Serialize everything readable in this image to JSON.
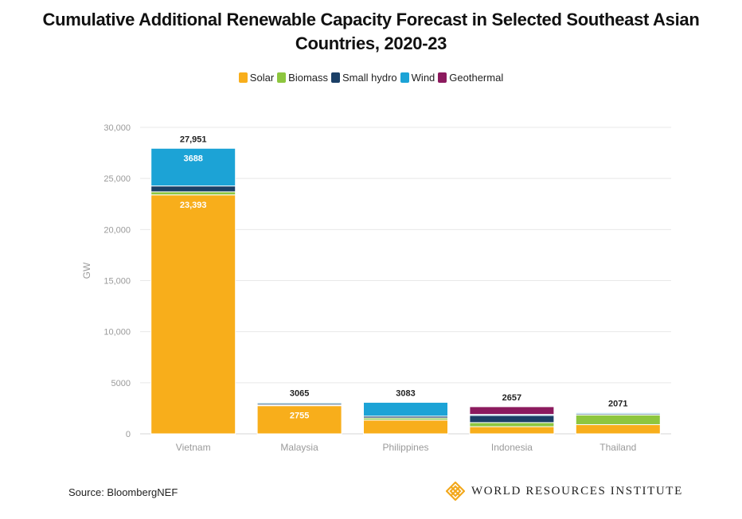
{
  "title_line1": "Cumulative Additional Renewable Capacity Forecast in Selected Southeast Asian",
  "title_line2": "Countries, 2020-23",
  "source": "Source: BloombergNEF",
  "logo_text": "WORLD RESOURCES INSTITUTE",
  "chart_data": {
    "type": "bar",
    "stacked": true,
    "title": "Cumulative Additional Renewable Capacity Forecast in Selected Southeast Asian Countries, 2020-23",
    "xlabel": "",
    "ylabel": "GW",
    "ylim": [
      0,
      30000
    ],
    "yticks": [
      0,
      5000,
      10000,
      15000,
      20000,
      25000,
      30000
    ],
    "ytick_labels": [
      "0",
      "5000",
      "10,000",
      "15,000",
      "20,000",
      "25,000",
      "30,000"
    ],
    "grid": true,
    "legend_position": "top-center",
    "categories": [
      "Vietnam",
      "Malaysia",
      "Philippines",
      "Indonesia",
      "Thailand"
    ],
    "series": [
      {
        "name": "Solar",
        "color": "#F8AE1B",
        "values": [
          23393,
          2755,
          1350,
          700,
          900
        ]
      },
      {
        "name": "Biomass",
        "color": "#8DC63F",
        "values": [
          300,
          70,
          200,
          400,
          950
        ]
      },
      {
        "name": "Small hydro",
        "color": "#1B3F66",
        "values": [
          570,
          140,
          180,
          700,
          120
        ]
      },
      {
        "name": "Wind",
        "color": "#1CA3D6",
        "values": [
          3688,
          100,
          1353,
          100,
          101
        ]
      },
      {
        "name": "Geothermal",
        "color": "#8C1A5E",
        "values": [
          0,
          0,
          0,
          757,
          0
        ]
      }
    ],
    "totals": [
      27951,
      3065,
      3083,
      2657,
      2071
    ],
    "total_labels": [
      "27,951",
      "3065",
      "3083",
      "2657",
      "2071"
    ],
    "data_labels": [
      {
        "category": "Vietnam",
        "series": "Wind",
        "text": "3688"
      },
      {
        "category": "Vietnam",
        "series": "Solar",
        "text": "23,393"
      },
      {
        "category": "Malaysia",
        "series": "Solar",
        "text": "2755"
      }
    ]
  }
}
